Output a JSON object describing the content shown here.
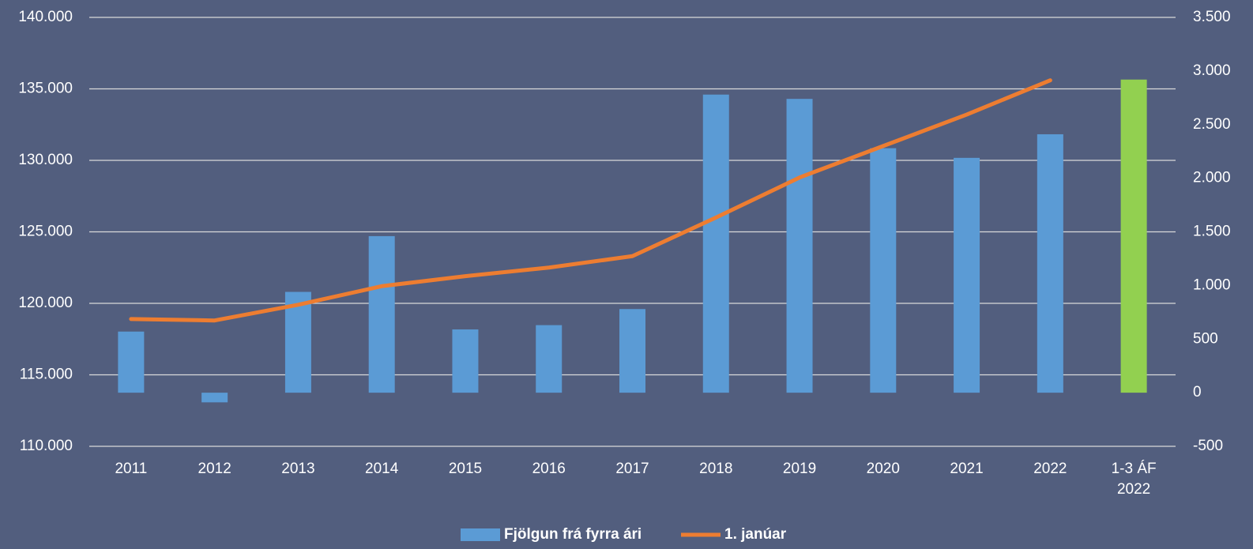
{
  "chart_data": {
    "type": "bar-line",
    "categories": [
      "2011",
      "2012",
      "2013",
      "2014",
      "2015",
      "2016",
      "2017",
      "2018",
      "2019",
      "2020",
      "2021",
      "2022",
      "1-3 ÁF 2022"
    ],
    "series": [
      {
        "name": "Fjölgun frá fyrra ári",
        "type": "bar",
        "axis": "y2",
        "color": "#5b9bd5",
        "colors": [
          "#5b9bd5",
          "#5b9bd5",
          "#5b9bd5",
          "#5b9bd5",
          "#5b9bd5",
          "#5b9bd5",
          "#5b9bd5",
          "#5b9bd5",
          "#5b9bd5",
          "#5b9bd5",
          "#5b9bd5",
          "#5b9bd5",
          "#92d050"
        ],
        "values": [
          570,
          -90,
          940,
          1460,
          590,
          630,
          780,
          2780,
          2740,
          2280,
          2190,
          2410,
          2920
        ]
      },
      {
        "name": "1. janúar",
        "type": "line",
        "axis": "y",
        "color": "#ed7d31",
        "values": [
          118900,
          118800,
          119900,
          121200,
          121900,
          122500,
          123300,
          126000,
          128800,
          131000,
          133200,
          135600,
          null
        ]
      }
    ],
    "ylim": [
      110000,
      140000
    ],
    "yticks": [
      {
        "value": 110000,
        "label": "110.000"
      },
      {
        "value": 115000,
        "label": "115.000"
      },
      {
        "value": 120000,
        "label": "120.000"
      },
      {
        "value": 125000,
        "label": "125.000"
      },
      {
        "value": 130000,
        "label": "130.000"
      },
      {
        "value": 135000,
        "label": "135.000"
      },
      {
        "value": 140000,
        "label": "140.000"
      }
    ],
    "y2lim": [
      -500,
      3500
    ],
    "y2ticks": [
      -500,
      0,
      500,
      {
        "value": 1000,
        "label": "1.000"
      },
      {
        "value": 1500,
        "label": "1.500"
      },
      {
        "value": 2000,
        "label": "2.000"
      },
      {
        "value": 2500,
        "label": "2.500"
      },
      {
        "value": 3000,
        "label": "3.000"
      },
      {
        "value": 3500,
        "label": "3.500"
      }
    ],
    "grid": true,
    "legend": "bottom"
  }
}
